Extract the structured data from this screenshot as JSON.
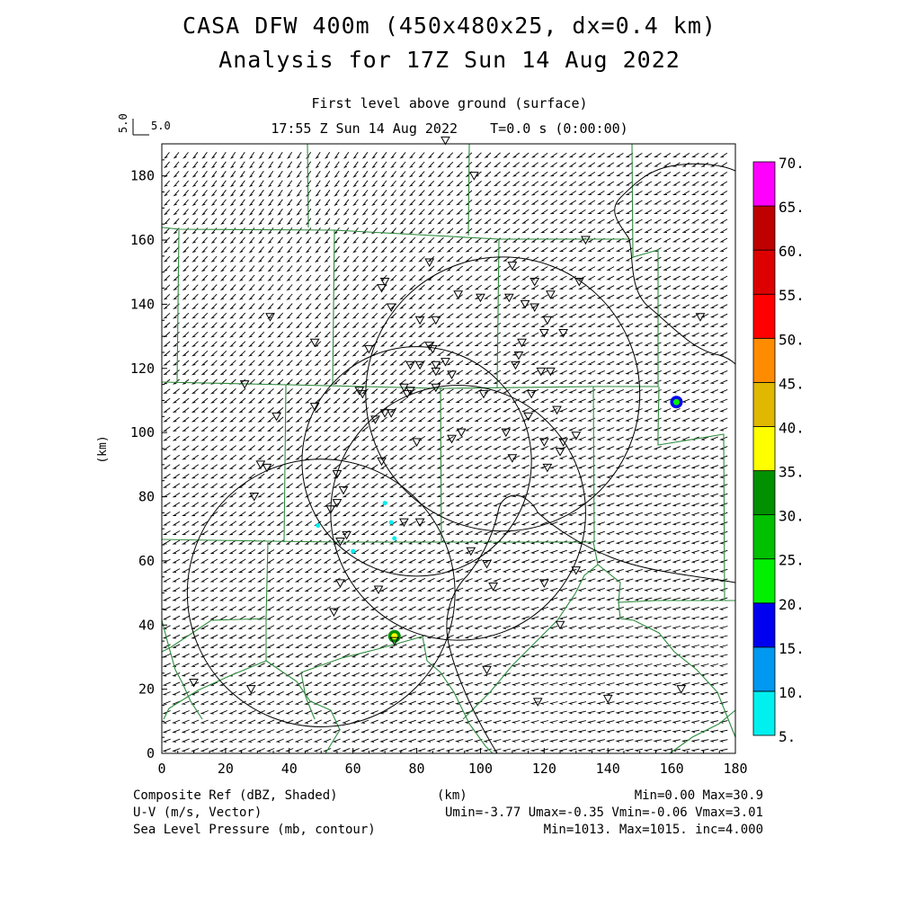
{
  "title": {
    "line1": "CASA DFW 400m (450x480x25, dx=0.4 km)",
    "line2": "Analysis for 17Z Sun 14 Aug 2022"
  },
  "subtitle": {
    "level": "First level above ground (surface)",
    "time": "17:55 Z Sun 14 Aug 2022    T=0.0 s (0:00:00)"
  },
  "reference_vector": {
    "value": 5.0,
    "label": "5.0",
    "rot_label": "5.0"
  },
  "footer": {
    "left": [
      "Composite Ref (dBZ, Shaded)",
      "U-V (m/s, Vector)",
      "Sea Level Pressure (mb, contour)"
    ],
    "xunit": "(km)",
    "right": [
      "Min=0.00 Max=30.9",
      "Umin=-3.77 Umax=-0.35 Vmin=-0.06 Vmax=3.01",
      "Min=1013. Max=1015. inc=4.000"
    ]
  },
  "colors": {
    "boundary": "#2e8b3e",
    "vector": "#000000",
    "contour": "#000000",
    "colorbar": [
      "#00f0f0",
      "#0098f0",
      "#0000f0",
      "#00f000",
      "#00c000",
      "#009000",
      "#ffff00",
      "#e0b800",
      "#ff8c00",
      "#ff0000",
      "#dc0000",
      "#be0000",
      "#ff00ff"
    ]
  },
  "chart_data": {
    "type": "map",
    "xlabel": "(km)",
    "ylabel": "(km)",
    "xlim": [
      0,
      180
    ],
    "ylim": [
      0,
      190
    ],
    "xticks": [
      0,
      20,
      40,
      60,
      80,
      100,
      120,
      140,
      160,
      180
    ],
    "yticks": [
      0,
      20,
      40,
      60,
      80,
      100,
      120,
      140,
      160,
      180
    ],
    "colorbar": {
      "label": "Composite Ref (dBZ)",
      "levels": [
        "5.",
        "10.",
        "15.",
        "20.",
        "25.",
        "30.",
        "35.",
        "40.",
        "45.",
        "50.",
        "55.",
        "60.",
        "65.",
        "70."
      ]
    },
    "radar_rings": [
      {
        "cx": 80,
        "cy": 91,
        "r": 36
      },
      {
        "cx": 107,
        "cy": 112,
        "r": 43
      },
      {
        "cx": 93,
        "cy": 75,
        "r": 40
      },
      {
        "cx": 50,
        "cy": 50,
        "r": 42
      }
    ],
    "reflectivity_echoes": [
      {
        "x": 161.5,
        "y": 109.5,
        "dbz": 15
      },
      {
        "x": 73,
        "y": 36.5,
        "dbz": 30
      },
      {
        "x": 49,
        "y": 71,
        "dbz": 8
      },
      {
        "x": 72,
        "y": 72,
        "dbz": 6
      },
      {
        "x": 73,
        "y": 67,
        "dbz": 6
      },
      {
        "x": 70,
        "y": 78,
        "dbz": 5
      },
      {
        "x": 60,
        "y": 63,
        "dbz": 5
      }
    ],
    "wind_range": {
      "umin": -3.77,
      "umax": -0.35,
      "vmin": -0.06,
      "vmax": 3.01
    },
    "pressure_contour_range": {
      "min": 1013,
      "max": 1015,
      "inc": 4.0
    },
    "stations": [
      [
        89,
        191
      ],
      [
        98,
        180
      ],
      [
        133,
        160
      ],
      [
        84,
        153
      ],
      [
        110,
        152
      ],
      [
        117,
        147
      ],
      [
        70,
        147
      ],
      [
        69,
        145
      ],
      [
        93,
        143
      ],
      [
        100,
        142
      ],
      [
        109,
        142
      ],
      [
        114,
        140
      ],
      [
        122,
        143
      ],
      [
        131,
        147
      ],
      [
        72,
        139
      ],
      [
        81,
        135
      ],
      [
        86,
        135
      ],
      [
        117,
        139
      ],
      [
        121,
        135
      ],
      [
        120,
        131
      ],
      [
        126,
        131
      ],
      [
        34,
        136
      ],
      [
        48,
        128
      ],
      [
        65,
        126
      ],
      [
        84,
        127
      ],
      [
        85,
        126
      ],
      [
        89,
        122
      ],
      [
        113,
        128
      ],
      [
        111,
        121
      ],
      [
        112,
        124
      ],
      [
        78,
        121
      ],
      [
        81,
        121
      ],
      [
        86,
        121
      ],
      [
        86,
        119
      ],
      [
        91,
        118
      ],
      [
        119,
        119
      ],
      [
        122,
        119
      ],
      [
        26,
        115
      ],
      [
        63,
        112
      ],
      [
        62,
        113
      ],
      [
        76,
        114
      ],
      [
        78,
        113
      ],
      [
        86,
        114
      ],
      [
        101,
        112
      ],
      [
        116,
        112
      ],
      [
        36,
        105
      ],
      [
        48,
        108
      ],
      [
        67,
        104
      ],
      [
        70,
        106
      ],
      [
        72,
        106
      ],
      [
        77,
        112
      ],
      [
        80,
        97
      ],
      [
        91,
        98
      ],
      [
        94,
        100
      ],
      [
        108,
        100
      ],
      [
        115,
        105
      ],
      [
        124,
        107
      ],
      [
        120,
        97
      ],
      [
        126,
        97
      ],
      [
        130,
        99
      ],
      [
        125,
        94
      ],
      [
        31,
        90
      ],
      [
        33,
        89
      ],
      [
        69,
        91
      ],
      [
        110,
        92
      ],
      [
        121,
        89
      ],
      [
        55,
        87
      ],
      [
        57,
        82
      ],
      [
        29,
        80
      ],
      [
        53,
        76
      ],
      [
        55,
        78
      ],
      [
        81,
        72
      ],
      [
        56,
        66
      ],
      [
        58,
        68
      ],
      [
        97,
        63
      ],
      [
        102,
        59
      ],
      [
        56,
        53
      ],
      [
        68,
        51
      ],
      [
        104,
        52
      ],
      [
        120,
        53
      ],
      [
        130,
        57
      ],
      [
        54,
        44
      ],
      [
        73,
        35
      ],
      [
        125,
        40
      ],
      [
        102,
        26
      ],
      [
        10,
        22
      ],
      [
        28,
        20
      ],
      [
        118,
        16
      ],
      [
        140,
        17
      ],
      [
        163,
        20
      ],
      [
        76,
        72
      ],
      [
        169,
        136
      ]
    ]
  }
}
